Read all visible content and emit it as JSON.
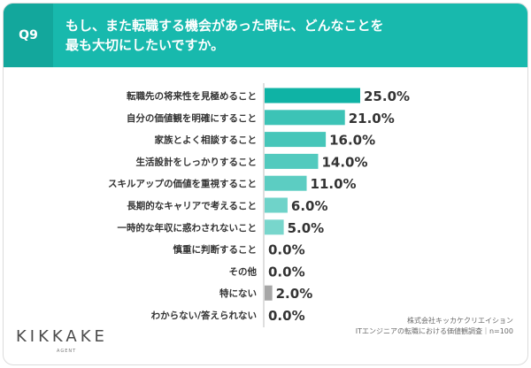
{
  "question": {
    "number": "Q9",
    "lines": [
      "もし、また転職する機会があった時に、どんなことを",
      "最も大切にしたいですか。"
    ]
  },
  "chart_data": {
    "type": "bar",
    "orientation": "horizontal",
    "categories": [
      "転職先の将来性を見極めること",
      "自分の価値観を明確にすること",
      "家族とよく相談すること",
      "生活設計をしっかりすること",
      "スキルアップの価値を重視すること",
      "長期的なキャリアで考えること",
      "一時的な年収に惑わされないこと",
      "慎重に判断すること",
      "その他",
      "特にない",
      "わからない/答えられない"
    ],
    "values": [
      25.0,
      21.0,
      16.0,
      14.0,
      11.0,
      6.0,
      5.0,
      0.0,
      0.0,
      2.0,
      0.0
    ],
    "value_labels": [
      "25.0%",
      "21.0%",
      "16.0%",
      "14.0%",
      "11.0%",
      "6.0%",
      "5.0%",
      "0.0%",
      "0.0%",
      "2.0%",
      "0.0%"
    ],
    "colors": [
      "#0fb3a5",
      "#3cc3b6",
      "#46c6b9",
      "#52cabe",
      "#5ccdc2",
      "#6fd3c9",
      "#78d6cc",
      "#78d6cc",
      "#9a9a9a",
      "#a6a6a6",
      "#a6a6a6"
    ],
    "xlim": [
      0,
      25
    ]
  },
  "source": {
    "line1": "株式会社キッカケクリエイション",
    "line2": "ITエンジニアの転職における価値観調査｜n=100"
  },
  "logo": {
    "text": "KIKKAKE",
    "sub": "AGENT"
  }
}
